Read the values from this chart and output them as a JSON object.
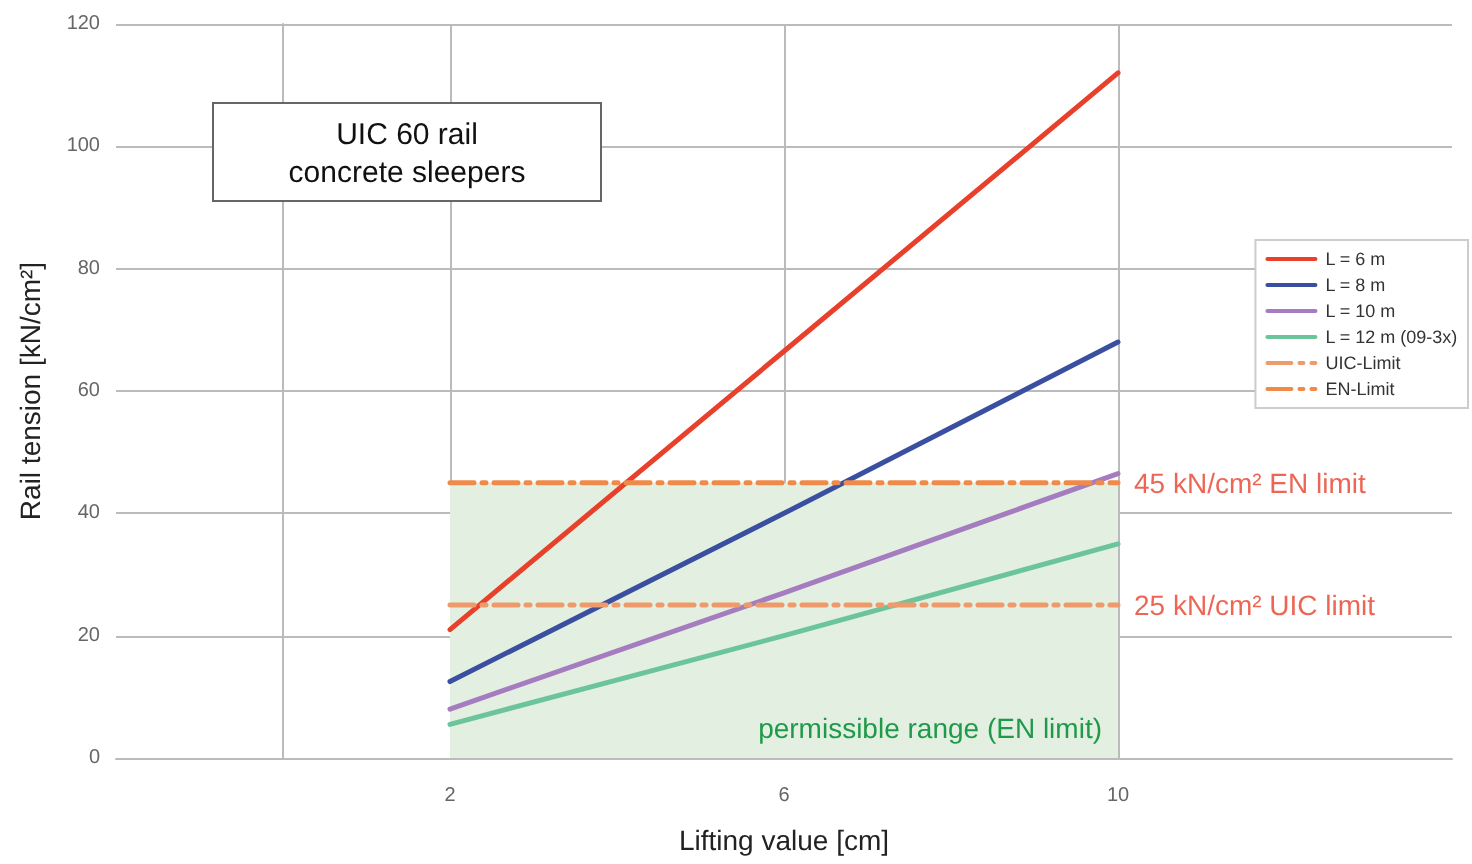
{
  "chart_data": {
    "type": "line",
    "xlabel": "Lifting value [cm]",
    "ylabel": "Rail tension [kN/cm²]",
    "x": [
      2,
      6,
      10
    ],
    "series": [
      {
        "name": "L = 6 m",
        "color": "#e8402a",
        "values": [
          21,
          66.5,
          112
        ]
      },
      {
        "name": "L = 8 m",
        "color": "#3a4fa0",
        "values": [
          12.5,
          40,
          68
        ]
      },
      {
        "name": "L = 10 m",
        "color": "#a57cc0",
        "values": [
          8,
          27,
          46.5
        ]
      },
      {
        "name": "L = 12 m (09-3x)",
        "color": "#6cc59a",
        "values": [
          5.5,
          20,
          35
        ]
      },
      {
        "name": "UIC-Limit",
        "color": "#ef9a6a",
        "values": [
          25,
          25,
          25
        ],
        "line_style": "dashed"
      },
      {
        "name": "EN-Limit",
        "color": "#f08a4a",
        "values": [
          45,
          45,
          45
        ],
        "line_style": "dashed"
      }
    ],
    "bands": [
      {
        "axis": "y",
        "from": 0,
        "to": 45,
        "label": "permissible range (EN limit)",
        "color": "#e3efe0"
      }
    ],
    "annotations": [
      "UIC 60 rail\nconcrete sleepers",
      {
        "text": "45 kN/cm² EN limit",
        "x": 10,
        "y": 45
      },
      {
        "text": "25 kN/cm² UIC limit",
        "x": 10,
        "y": 25
      }
    ],
    "xlim": [
      -2,
      14
    ],
    "xticks": [
      2,
      6,
      10
    ],
    "ylim": [
      0,
      120
    ],
    "yticks": [
      0,
      20,
      40,
      60,
      80,
      100,
      120
    ],
    "grid": true,
    "legend": "right",
    "marker": "none",
    "line_style": "solid"
  }
}
